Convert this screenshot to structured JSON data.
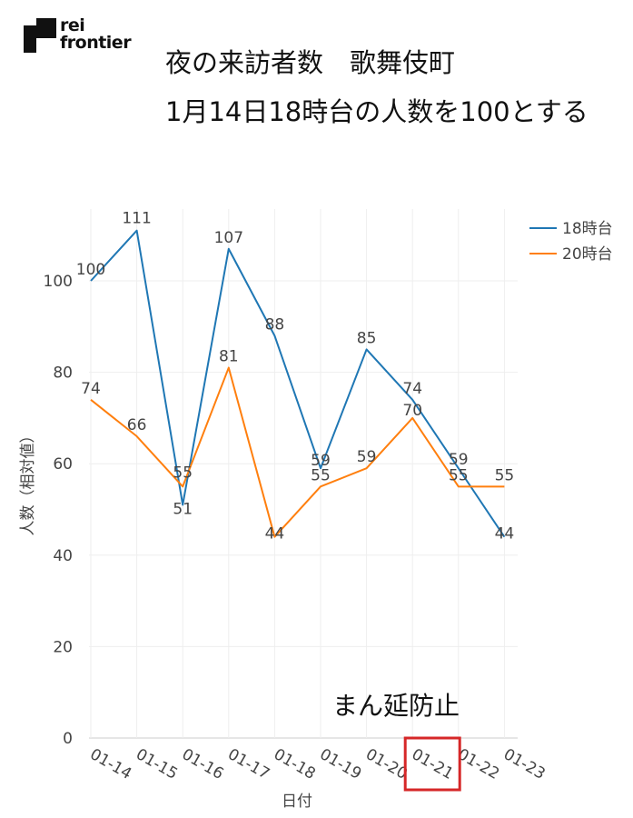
{
  "logo": {
    "line1": "rei",
    "line2": "frontier"
  },
  "title": {
    "line1": "夜の来訪者数　歌舞伎町",
    "line2": "1月14日18時台の人数を100とする"
  },
  "annotation": "まん延防止",
  "colors": {
    "s18": "#1f77b4",
    "s20": "#ff7f0e",
    "highlight": "#d62728",
    "grid": "#eeeeee"
  },
  "chart_data": {
    "type": "line",
    "title": "夜の来訪者数　歌舞伎町",
    "subtitle": "1月14日18時台の人数を100とする",
    "xlabel": "日付",
    "ylabel": "人数（相対値）",
    "categories": [
      "01-14",
      "01-15",
      "01-16",
      "01-17",
      "01-18",
      "01-19",
      "01-20",
      "01-21",
      "01-22",
      "01-23"
    ],
    "series": [
      {
        "name": "18時台",
        "values": [
          100,
          111,
          51,
          107,
          88,
          59,
          85,
          74,
          59,
          44
        ]
      },
      {
        "name": "20時台",
        "values": [
          74,
          66,
          55,
          81,
          44,
          55,
          59,
          70,
          55,
          55
        ]
      }
    ],
    "ylim": [
      0,
      118
    ],
    "yticks": [
      0,
      20,
      40,
      60,
      80,
      100
    ],
    "grid": true,
    "legend": "top-right",
    "data_labels": true,
    "highlighted_category": "01-21",
    "annotation": "まん延防止"
  }
}
